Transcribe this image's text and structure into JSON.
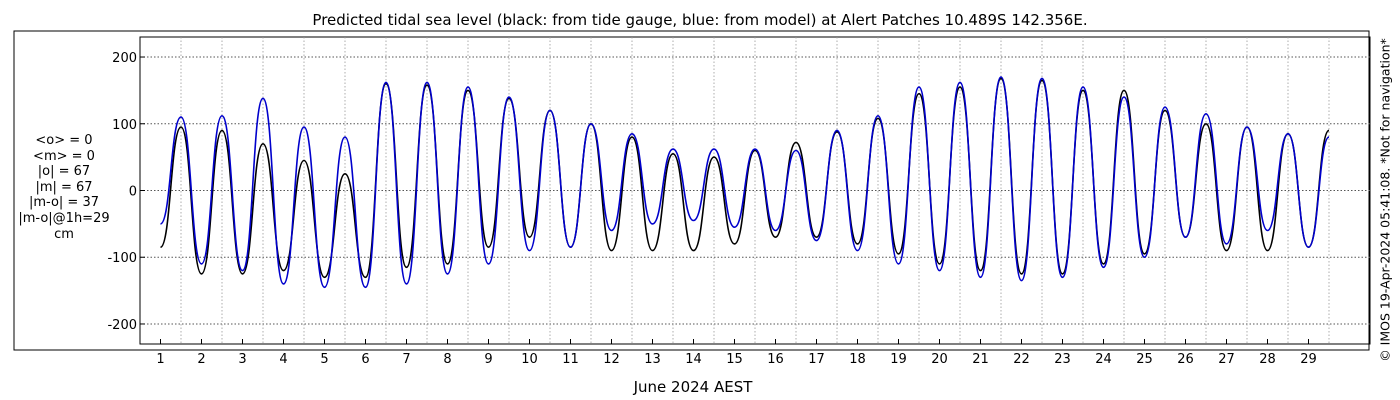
{
  "chart_data": {
    "type": "line",
    "title": "Predicted tidal sea level (black: from tide gauge, blue: from model) at Alert Patches 10.489S 142.356E.",
    "xlabel": "June 2024 AEST",
    "ylabel": "",
    "xlim": [
      0,
      30
    ],
    "ylim": [
      -230,
      230
    ],
    "yticks": [
      -200,
      -100,
      0,
      100,
      200
    ],
    "xticks": [
      1,
      2,
      3,
      4,
      5,
      6,
      7,
      8,
      9,
      10,
      11,
      12,
      13,
      14,
      15,
      16,
      17,
      18,
      19,
      20,
      21,
      22,
      23,
      24,
      25,
      26,
      27,
      28,
      29
    ],
    "grid": true,
    "legend": "none",
    "series": [
      {
        "color": "#000000",
        "sample_interval_days": 0.5,
        "x_start": 0.5,
        "values": [
          -85,
          95,
          -125,
          90,
          -125,
          70,
          -120,
          45,
          -130,
          25,
          -130,
          160,
          -115,
          158,
          -110,
          150,
          -85,
          138,
          -70,
          120,
          -85,
          100,
          -90,
          80,
          -90,
          55,
          -90,
          50,
          -80,
          60,
          -70,
          72,
          -70,
          88,
          -80,
          108,
          -95,
          145,
          -110,
          155,
          -120,
          168,
          -125,
          165,
          -125,
          150,
          -110,
          150,
          -95,
          120,
          -70,
          100,
          -90,
          95,
          -90,
          85,
          -85,
          90
        ]
      },
      {
        "color": "#0000cc",
        "sample_interval_days": 0.5,
        "x_start": 0.5,
        "values": [
          -50,
          110,
          -110,
          112,
          -120,
          138,
          -140,
          95,
          -145,
          80,
          -145,
          162,
          -140,
          162,
          -125,
          155,
          -110,
          140,
          -90,
          120,
          -85,
          100,
          -60,
          85,
          -50,
          62,
          -45,
          62,
          -55,
          62,
          -60,
          60,
          -75,
          90,
          -90,
          112,
          -110,
          155,
          -120,
          162,
          -130,
          170,
          -135,
          168,
          -130,
          155,
          -115,
          140,
          -100,
          125,
          -70,
          115,
          -80,
          95,
          -60,
          85,
          -85,
          80
        ]
      }
    ]
  },
  "stats": {
    "lines": [
      "<o> = 0",
      "<m> = 0",
      "|o| = 67",
      "|m| = 67",
      "|m-o| = 37",
      "|m-o|@1h=29",
      "cm"
    ]
  },
  "copyright": "© IMOS 19-Apr-2024 05:41:08. *Not for navigation*"
}
